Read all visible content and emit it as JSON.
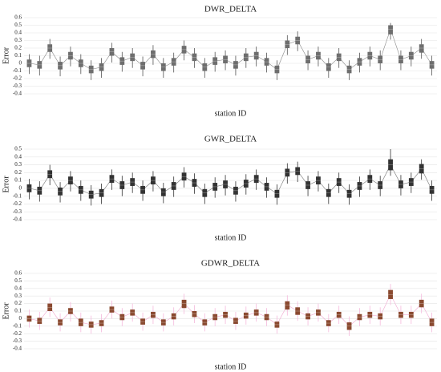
{
  "chart_data": [
    {
      "type": "box",
      "title": "DWR_DELTA",
      "ylabel": "Error",
      "xlabel": "station ID",
      "box_color": "#6e6e6e",
      "whisker_color": "#555555",
      "line_color": "#888888",
      "grid": true,
      "ylim": [
        -0.4,
        0.6
      ],
      "yticks": [
        0.6,
        0.5,
        0.4,
        0.3,
        0.2,
        0.1,
        0,
        -0.1,
        -0.2,
        -0.3,
        -0.4
      ],
      "categories": [
        null,
        null,
        null,
        null,
        null,
        null,
        null,
        null,
        null,
        null,
        null,
        null,
        null,
        null,
        null,
        null,
        null,
        null,
        null,
        null,
        null,
        null,
        null,
        null,
        null,
        null,
        null,
        null,
        null,
        null,
        null,
        null,
        null,
        null,
        null,
        null,
        null,
        null,
        null,
        null
      ],
      "median": [
        0,
        -0.02,
        0.2,
        -0.03,
        0.1,
        0,
        -0.08,
        -0.05,
        0.15,
        0.03,
        0.08,
        -0.03,
        0.12,
        -0.05,
        0.02,
        0.18,
        0.08,
        -0.05,
        0.03,
        0.05,
        -0.02,
        0.08,
        0.1,
        0.02,
        -0.08,
        0.25,
        0.3,
        0.05,
        0.1,
        -0.05,
        0.08,
        -0.08,
        0.02,
        0.1,
        0.05,
        0.45,
        0.05,
        0.1,
        0.2,
        -0.02
      ],
      "q1": [
        -0.05,
        -0.07,
        0.15,
        -0.08,
        0.05,
        -0.05,
        -0.13,
        -0.1,
        0.1,
        -0.02,
        0.03,
        -0.08,
        0.07,
        -0.1,
        -0.03,
        0.13,
        0.03,
        -0.1,
        -0.02,
        0,
        -0.07,
        0.03,
        0.05,
        -0.03,
        -0.13,
        0.2,
        0.25,
        0,
        0.05,
        -0.1,
        0.03,
        -0.13,
        -0.03,
        0.05,
        0,
        0.38,
        0,
        0.05,
        0.14,
        -0.07
      ],
      "q3": [
        0.05,
        0.03,
        0.25,
        0.02,
        0.15,
        0.05,
        -0.03,
        0,
        0.2,
        0.08,
        0.13,
        0.02,
        0.17,
        0,
        0.07,
        0.23,
        0.13,
        0,
        0.08,
        0.1,
        0.03,
        0.13,
        0.15,
        0.07,
        -0.03,
        0.3,
        0.35,
        0.1,
        0.15,
        0,
        0.13,
        -0.03,
        0.07,
        0.15,
        0.1,
        0.5,
        0.1,
        0.15,
        0.25,
        0.03
      ],
      "low": [
        -0.14,
        -0.16,
        0.06,
        -0.17,
        -0.04,
        -0.14,
        -0.22,
        -0.19,
        0.01,
        -0.11,
        -0.06,
        -0.17,
        -0.02,
        -0.19,
        -0.12,
        0.04,
        -0.06,
        -0.19,
        -0.11,
        -0.09,
        -0.16,
        -0.06,
        -0.04,
        -0.12,
        -0.22,
        0.11,
        0.16,
        -0.09,
        -0.04,
        -0.19,
        -0.06,
        -0.22,
        -0.12,
        -0.04,
        -0.09,
        0.31,
        -0.09,
        -0.04,
        0.06,
        -0.16
      ],
      "high": [
        0.12,
        0.1,
        0.32,
        0.09,
        0.22,
        0.12,
        0.04,
        0.07,
        0.27,
        0.15,
        0.2,
        0.09,
        0.24,
        0.07,
        0.14,
        0.3,
        0.2,
        0.07,
        0.15,
        0.17,
        0.1,
        0.2,
        0.22,
        0.14,
        0.04,
        0.37,
        0.42,
        0.17,
        0.22,
        0.07,
        0.2,
        0.04,
        0.14,
        0.22,
        0.17,
        0.53,
        0.17,
        0.22,
        0.32,
        0.1
      ]
    },
    {
      "type": "box",
      "title": "GWR_DELTA",
      "ylabel": "Error",
      "xlabel": "station ID",
      "box_color": "#333333",
      "whisker_color": "#333333",
      "line_color": "#777777",
      "grid": true,
      "ylim": [
        -0.4,
        0.5
      ],
      "yticks": [
        0.5,
        0.4,
        0.3,
        0.2,
        0.1,
        0,
        -0.1,
        -0.2,
        -0.3,
        -0.4
      ],
      "categories": [
        null,
        null,
        null,
        null,
        null,
        null,
        null,
        null,
        null,
        null,
        null,
        null,
        null,
        null,
        null,
        null,
        null,
        null,
        null,
        null,
        null,
        null,
        null,
        null,
        null,
        null,
        null,
        null,
        null,
        null,
        null,
        null,
        null,
        null,
        null,
        null,
        null,
        null,
        null,
        null
      ],
      "median": [
        0,
        -0.03,
        0.18,
        -0.04,
        0.1,
        -0.02,
        -0.08,
        -0.06,
        0.12,
        0.04,
        0.08,
        -0.02,
        0.1,
        -0.05,
        0.03,
        0.15,
        0.07,
        -0.06,
        0.02,
        0.05,
        -0.03,
        0.06,
        0.12,
        0.02,
        -0.07,
        0.2,
        0.22,
        0.04,
        0.1,
        -0.06,
        0.08,
        -0.07,
        0.03,
        0.12,
        0.04,
        0.3,
        0.05,
        0.08,
        0.25,
        -0.02
      ],
      "q1": [
        -0.05,
        -0.08,
        0.13,
        -0.09,
        0.05,
        -0.07,
        -0.13,
        -0.11,
        0.07,
        -0.01,
        0.03,
        -0.07,
        0.05,
        -0.1,
        -0.02,
        0.1,
        0.02,
        -0.11,
        -0.03,
        0,
        -0.08,
        0.01,
        0.07,
        -0.03,
        -0.12,
        0.15,
        0.17,
        -0.01,
        0.05,
        -0.11,
        0.03,
        -0.12,
        -0.02,
        0.07,
        -0.01,
        0.23,
        0,
        0.03,
        0.19,
        -0.07
      ],
      "q3": [
        0.05,
        0.02,
        0.23,
        0.01,
        0.15,
        0.03,
        -0.03,
        -0.01,
        0.17,
        0.09,
        0.13,
        0.03,
        0.15,
        0,
        0.08,
        0.2,
        0.12,
        -0.01,
        0.07,
        0.1,
        0.02,
        0.11,
        0.17,
        0.07,
        -0.02,
        0.25,
        0.27,
        0.09,
        0.15,
        -0.01,
        0.13,
        -0.02,
        0.08,
        0.17,
        0.09,
        0.37,
        0.1,
        0.13,
        0.31,
        0.03
      ],
      "low": [
        -0.14,
        -0.17,
        0.04,
        -0.18,
        -0.04,
        -0.16,
        -0.22,
        -0.2,
        -0.02,
        -0.1,
        -0.06,
        -0.16,
        -0.04,
        -0.19,
        -0.11,
        0.01,
        -0.07,
        -0.2,
        -0.12,
        -0.09,
        -0.17,
        -0.08,
        -0.02,
        -0.12,
        -0.21,
        0.06,
        0.08,
        -0.1,
        -0.04,
        -0.2,
        -0.06,
        -0.21,
        -0.11,
        -0.02,
        -0.1,
        0.16,
        -0.09,
        -0.06,
        0.11,
        -0.16
      ],
      "high": [
        0.12,
        0.09,
        0.3,
        0.08,
        0.22,
        0.1,
        0.04,
        0.06,
        0.24,
        0.16,
        0.2,
        0.1,
        0.22,
        0.07,
        0.15,
        0.27,
        0.19,
        0.06,
        0.14,
        0.17,
        0.09,
        0.18,
        0.24,
        0.14,
        0.05,
        0.32,
        0.34,
        0.16,
        0.22,
        0.06,
        0.2,
        0.05,
        0.15,
        0.24,
        0.16,
        0.5,
        0.17,
        0.2,
        0.37,
        0.1
      ]
    },
    {
      "type": "box",
      "title": "GDWR_DELTA",
      "ylabel": "Error",
      "xlabel": "station ID",
      "box_color": "#8a4a30",
      "whisker_color": "#f5b8dc",
      "line_color": "#f0a8d0",
      "grid": true,
      "ylim": [
        -0.4,
        0.6
      ],
      "yticks": [
        0.6,
        0.5,
        0.4,
        0.3,
        0.2,
        0.1,
        0,
        -0.1,
        -0.2,
        -0.3,
        -0.4
      ],
      "categories": [
        null,
        null,
        null,
        null,
        null,
        null,
        null,
        null,
        null,
        null,
        null,
        null,
        null,
        null,
        null,
        null,
        null,
        null,
        null,
        null,
        null,
        null,
        null,
        null,
        null,
        null,
        null,
        null,
        null,
        null,
        null,
        null,
        null,
        null,
        null,
        null,
        null,
        null,
        null,
        null
      ],
      "median": [
        0,
        -0.03,
        0.15,
        -0.05,
        0.1,
        -0.05,
        -0.08,
        -0.06,
        0.12,
        0.02,
        0.08,
        -0.04,
        0.05,
        -0.05,
        0.03,
        0.2,
        0.06,
        -0.05,
        0.02,
        0.05,
        -0.03,
        0.04,
        0.08,
        0.02,
        -0.08,
        0.18,
        0.1,
        0.03,
        0.08,
        -0.06,
        0.05,
        -0.1,
        0.02,
        0.05,
        0.03,
        0.32,
        0.05,
        0.05,
        0.2,
        -0.05
      ],
      "q1": [
        -0.04,
        -0.07,
        0.1,
        -0.09,
        0.06,
        -0.1,
        -0.12,
        -0.1,
        0.08,
        -0.02,
        0.04,
        -0.08,
        0.01,
        -0.09,
        -0.01,
        0.14,
        0.02,
        -0.09,
        -0.02,
        0.01,
        -0.07,
        0,
        0.04,
        -0.02,
        -0.12,
        0.12,
        0.05,
        -0.01,
        0.04,
        -0.1,
        0.01,
        -0.15,
        -0.02,
        0.01,
        -0.01,
        0.26,
        0.01,
        0.01,
        0.15,
        -0.1
      ],
      "q3": [
        0.04,
        0.01,
        0.2,
        -0.01,
        0.14,
        0,
        -0.04,
        -0.02,
        0.16,
        0.06,
        0.12,
        0,
        0.09,
        -0.01,
        0.07,
        0.25,
        0.1,
        -0.01,
        0.06,
        0.09,
        0.01,
        0.08,
        0.12,
        0.06,
        -0.04,
        0.23,
        0.15,
        0.07,
        0.12,
        -0.02,
        0.09,
        -0.05,
        0.06,
        0.09,
        0.07,
        0.38,
        0.09,
        0.09,
        0.25,
        0
      ],
      "low": [
        -0.12,
        -0.15,
        0.02,
        -0.17,
        -0.04,
        -0.18,
        -0.2,
        -0.18,
        0,
        -0.1,
        -0.04,
        -0.16,
        -0.07,
        -0.17,
        -0.09,
        0.06,
        -0.06,
        -0.17,
        -0.1,
        -0.07,
        -0.15,
        -0.08,
        -0.04,
        -0.1,
        -0.2,
        0.04,
        -0.03,
        -0.09,
        -0.04,
        -0.18,
        -0.07,
        -0.23,
        -0.1,
        -0.07,
        -0.09,
        0.18,
        -0.07,
        -0.07,
        0.07,
        -0.18
      ],
      "high": [
        0.12,
        0.09,
        0.28,
        0.07,
        0.22,
        0.08,
        0.04,
        0.06,
        0.24,
        0.14,
        0.2,
        0.08,
        0.17,
        0.07,
        0.15,
        0.33,
        0.18,
        0.07,
        0.14,
        0.17,
        0.09,
        0.16,
        0.2,
        0.14,
        0.04,
        0.31,
        0.23,
        0.15,
        0.2,
        0.06,
        0.17,
        0.03,
        0.14,
        0.17,
        0.15,
        0.46,
        0.17,
        0.17,
        0.33,
        0.08
      ]
    }
  ]
}
